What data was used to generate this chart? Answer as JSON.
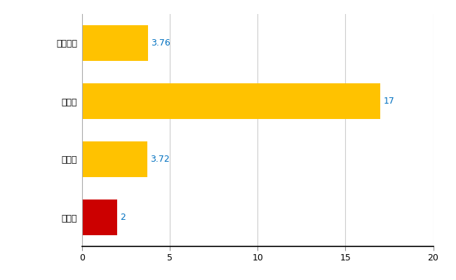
{
  "categories": [
    "全国平均",
    "県最大",
    "県平均",
    "大紀町"
  ],
  "values": [
    3.76,
    17,
    3.72,
    2
  ],
  "labels": [
    "3.76",
    "17",
    "3.72",
    "2"
  ],
  "bar_colors": [
    "#FFC200",
    "#FFC200",
    "#FFC200",
    "#CC0000"
  ],
  "xlim": [
    0,
    20
  ],
  "xticks": [
    0,
    5,
    10,
    15,
    20
  ],
  "background_color": "#ffffff",
  "grid_color": "#cccccc",
  "grid_color_light": "#dddddd",
  "label_color": "#0070c0",
  "bar_height": 0.62,
  "label_fontsize": 9,
  "tick_fontsize": 9,
  "figsize": [
    6.5,
    4.0
  ],
  "dpi": 100
}
